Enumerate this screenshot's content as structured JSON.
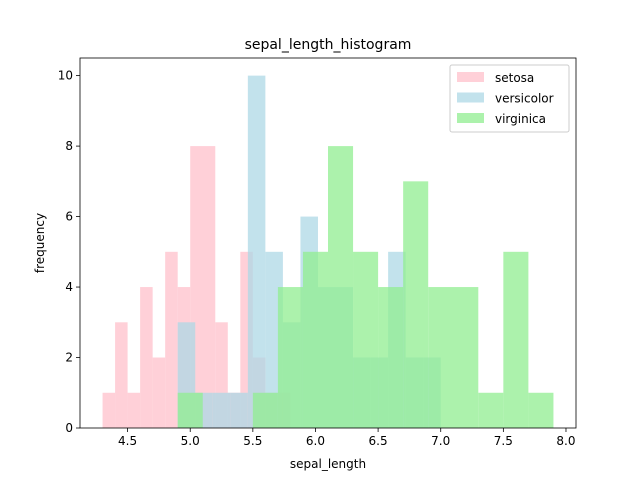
{
  "chart_data": {
    "type": "bar",
    "subtype": "overlaid-histogram",
    "title": "sepal_length_histogram",
    "xlabel": "sepal_length",
    "ylabel": "frequency",
    "xlim": [
      4.12,
      8.08
    ],
    "ylim": [
      0,
      10.5
    ],
    "xticks": [
      "4.5",
      "5.0",
      "5.5",
      "6.0",
      "6.5",
      "7.0",
      "7.5",
      "8.0"
    ],
    "yticks": [
      "0",
      "2",
      "4",
      "6",
      "8",
      "10"
    ],
    "legend_position": "top-right",
    "grid": false,
    "series": [
      {
        "name": "setosa",
        "color": "#ffc0cb",
        "opacity": 0.75,
        "bins": [
          {
            "x0": 4.3,
            "x1": 4.4,
            "y": 1
          },
          {
            "x0": 4.4,
            "x1": 4.5,
            "y": 3
          },
          {
            "x0": 4.5,
            "x1": 4.6,
            "y": 1
          },
          {
            "x0": 4.6,
            "x1": 4.7,
            "y": 4
          },
          {
            "x0": 4.7,
            "x1": 4.8,
            "y": 2
          },
          {
            "x0": 4.8,
            "x1": 4.9,
            "y": 5
          },
          {
            "x0": 4.9,
            "x1": 5.0,
            "y": 4
          },
          {
            "x0": 5.0,
            "x1": 5.2,
            "y": 8
          },
          {
            "x0": 5.2,
            "x1": 5.3,
            "y": 3
          },
          {
            "x0": 5.3,
            "x1": 5.4,
            "y": 1
          },
          {
            "x0": 5.4,
            "x1": 5.5,
            "y": 5
          },
          {
            "x0": 5.5,
            "x1": 5.6,
            "y": 2
          },
          {
            "x0": 5.6,
            "x1": 5.8,
            "y": 1
          }
        ]
      },
      {
        "name": "versicolor",
        "color": "#add8e6",
        "opacity": 0.75,
        "bins": [
          {
            "x0": 4.9,
            "x1": 5.04,
            "y": 3
          },
          {
            "x0": 5.04,
            "x1": 5.18,
            "y": 1
          },
          {
            "x0": 5.18,
            "x1": 5.32,
            "y": 1
          },
          {
            "x0": 5.32,
            "x1": 5.46,
            "y": 1
          },
          {
            "x0": 5.46,
            "x1": 5.6,
            "y": 10
          },
          {
            "x0": 5.6,
            "x1": 5.74,
            "y": 5
          },
          {
            "x0": 5.74,
            "x1": 5.88,
            "y": 3
          },
          {
            "x0": 5.88,
            "x1": 6.02,
            "y": 6
          },
          {
            "x0": 6.02,
            "x1": 6.16,
            "y": 4
          },
          {
            "x0": 6.16,
            "x1": 6.3,
            "y": 4
          },
          {
            "x0": 6.3,
            "x1": 6.44,
            "y": 2
          },
          {
            "x0": 6.44,
            "x1": 6.58,
            "y": 2
          },
          {
            "x0": 6.58,
            "x1": 6.72,
            "y": 5
          },
          {
            "x0": 6.72,
            "x1": 6.86,
            "y": 2
          },
          {
            "x0": 6.86,
            "x1": 7.0,
            "y": 2
          }
        ]
      },
      {
        "name": "virginica",
        "color": "#90ee90",
        "opacity": 0.75,
        "bins": [
          {
            "x0": 4.9,
            "x1": 5.1,
            "y": 1
          },
          {
            "x0": 5.1,
            "x1": 5.5,
            "y": 0
          },
          {
            "x0": 5.5,
            "x1": 5.7,
            "y": 1
          },
          {
            "x0": 5.7,
            "x1": 5.9,
            "y": 4
          },
          {
            "x0": 5.9,
            "x1": 6.1,
            "y": 5
          },
          {
            "x0": 6.1,
            "x1": 6.3,
            "y": 8
          },
          {
            "x0": 6.3,
            "x1": 6.5,
            "y": 5
          },
          {
            "x0": 6.5,
            "x1": 6.7,
            "y": 4
          },
          {
            "x0": 6.7,
            "x1": 6.9,
            "y": 7
          },
          {
            "x0": 6.9,
            "x1": 7.3,
            "y": 4
          },
          {
            "x0": 7.3,
            "x1": 7.5,
            "y": 1
          },
          {
            "x0": 7.5,
            "x1": 7.7,
            "y": 5
          },
          {
            "x0": 7.7,
            "x1": 7.9,
            "y": 1
          }
        ]
      }
    ]
  }
}
